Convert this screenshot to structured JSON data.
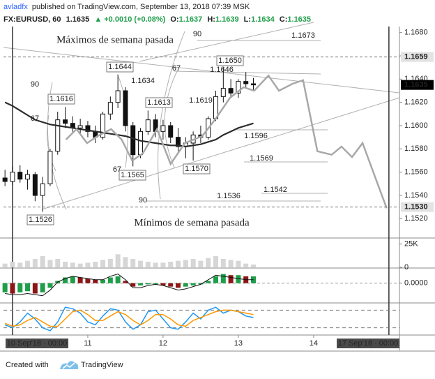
{
  "header": {
    "author": "avladfx",
    "published": "published on TradingView.com, September 13, 2018 07:39 MSK",
    "symbol": "FX:EURUSD, 60",
    "last": "1.1635",
    "change": "▲ +0.0010 (+0.08%)",
    "ohlc": [
      {
        "label": "O:",
        "value": "1.1637"
      },
      {
        "label": "H:",
        "value": "1.1639"
      },
      {
        "label": "L:",
        "value": "1.1634"
      },
      {
        "label": "C:",
        "value": "1.1635"
      }
    ]
  },
  "footer": {
    "created": "Created with",
    "brand": "TradingView"
  },
  "chart_data": [
    {
      "type": "candlestick",
      "x": [
        9.9,
        10,
        10.1,
        10.2,
        10.3,
        10.4,
        10.5,
        10.6,
        10.7,
        10.8,
        10.9,
        11,
        11.1,
        11.2,
        11.3,
        11.4,
        11.5,
        11.6,
        11.7,
        11.8,
        11.9,
        12,
        12.1,
        12.2,
        12.3,
        12.4,
        12.5,
        12.6,
        12.7,
        12.8,
        12.9,
        13,
        13.1,
        13.2
      ],
      "open": [
        1.1555,
        1.1552,
        1.156,
        1.1554,
        1.1558,
        1.154,
        1.155,
        1.1578,
        1.1605,
        1.1602,
        1.1598,
        1.16,
        1.1595,
        1.159,
        1.161,
        1.162,
        1.163,
        1.16,
        1.1575,
        1.1595,
        1.1605,
        1.1595,
        1.16,
        1.159,
        1.1582,
        1.1585,
        1.1592,
        1.159,
        1.1606,
        1.1625,
        1.1632,
        1.1628,
        1.1638,
        1.1636
      ],
      "high": [
        1.1562,
        1.1565,
        1.1566,
        1.1562,
        1.156,
        1.1556,
        1.158,
        1.1612,
        1.1616,
        1.1608,
        1.1606,
        1.1604,
        1.16,
        1.1612,
        1.1625,
        1.1644,
        1.1633,
        1.1603,
        1.1598,
        1.1613,
        1.161,
        1.1605,
        1.1603,
        1.1598,
        1.159,
        1.1595,
        1.16,
        1.1608,
        1.163,
        1.165,
        1.164,
        1.164,
        1.1646,
        1.1641
      ],
      "low": [
        1.1548,
        1.1549,
        1.1551,
        1.1545,
        1.1535,
        1.1526,
        1.1548,
        1.1575,
        1.1598,
        1.1594,
        1.1592,
        1.159,
        1.1585,
        1.1588,
        1.1605,
        1.1615,
        1.1595,
        1.1565,
        1.1572,
        1.1592,
        1.159,
        1.1588,
        1.1585,
        1.1578,
        1.1572,
        1.157,
        1.1585,
        1.1588,
        1.1604,
        1.162,
        1.1625,
        1.1624,
        1.1632,
        1.163
      ],
      "close": [
        1.1552,
        1.156,
        1.1554,
        1.1558,
        1.154,
        1.155,
        1.1578,
        1.1605,
        1.1602,
        1.1598,
        1.16,
        1.1595,
        1.159,
        1.161,
        1.162,
        1.163,
        1.16,
        1.1575,
        1.1595,
        1.1605,
        1.1595,
        1.16,
        1.159,
        1.1582,
        1.1585,
        1.1592,
        1.159,
        1.1606,
        1.1625,
        1.1632,
        1.1628,
        1.1638,
        1.1636,
        1.1635
      ],
      "lines": [
        {
          "color": "#2b2b2b",
          "values": [
            1.162,
            1.1617,
            1.1613,
            1.1609,
            1.1605,
            1.1603,
            1.1601,
            1.16,
            1.1599,
            1.1598,
            1.1597,
            1.1596,
            1.1595,
            1.1594,
            1.1593,
            1.1592,
            1.1591,
            1.1589,
            1.1587,
            1.1586,
            1.1585,
            1.1584,
            1.1583,
            1.1583,
            1.1582,
            1.1583,
            1.1584,
            1.1586,
            1.1588,
            1.1592,
            1.1595,
            1.1598,
            1.16,
            1.1602
          ]
        },
        {
          "color": "#a8a8a8",
          "x": [
            10.71,
            10.85,
            10.99,
            11.13,
            11.31,
            11.45,
            11.59,
            11.73,
            11.92,
            12.1,
            12.29,
            12.52,
            12.7,
            12.89,
            13.07,
            13.21,
            13.4,
            13.54,
            13.72,
            13.86,
            14.05,
            14.24,
            14.37,
            14.51,
            14.65,
            14.97
          ],
          "values": [
            1.1588,
            1.1597,
            1.1585,
            1.1591,
            1.1597,
            1.1588,
            1.157,
            1.1576,
            1.1597,
            1.1567,
            1.1585,
            1.1591,
            1.1606,
            1.1624,
            1.1633,
            1.163,
            1.1643,
            1.163,
            1.1636,
            1.1639,
            1.1578,
            1.1575,
            1.1582,
            1.1573,
            1.1585,
            1.1529
          ]
        }
      ],
      "annotations": [
        "Máximos de semana pasada",
        "Mínimos de semana pasada",
        "1.1644",
        "1.1616",
        "1.1613",
        "1.1565",
        "1.1570",
        "1.1526",
        "1.1650",
        "1.1634",
        "1.1646",
        "1.1619",
        "1.1596",
        "1.1569",
        "1.1542",
        "1.1536",
        "1.1673",
        "90",
        "67",
        "90",
        "67",
        "67",
        "90"
      ],
      "price_labels": [
        {
          "value": 1.1659,
          "label": "1.1659",
          "color": "#e3e3e3",
          "dashed": true
        },
        {
          "value": 1.1635,
          "label": "1.1635",
          "color": "#000000"
        },
        {
          "value": 1.153,
          "label": "1.1530",
          "color": "#e3e3e3",
          "dashed": true
        }
      ],
      "xlim": [
        9.88,
        15.14
      ],
      "xticks": [
        {
          "value": 10,
          "label": "10 Sep'18 · 00:00"
        },
        11,
        12,
        13,
        14,
        {
          "value": 15,
          "label": "17 Sep'18 · 00:00"
        }
      ],
      "ylim": [
        1.1504,
        1.169
      ],
      "yticks": [
        {
          "value": 1.168,
          "label": "1.1680"
        },
        {
          "value": 1.166,
          "label": "1.1660"
        },
        {
          "value": 1.164,
          "label": "1.1640"
        },
        {
          "value": 1.162,
          "label": "1.1620"
        },
        {
          "value": 1.16,
          "label": "1.1600"
        },
        {
          "value": 1.158,
          "label": "1.1580"
        },
        {
          "value": 1.156,
          "label": "1.1560"
        },
        {
          "value": 1.154,
          "label": "1.1540"
        },
        {
          "value": 1.152,
          "label": "1.1520"
        }
      ]
    },
    {
      "type": "bar",
      "color": "#d6d6d6",
      "x": [
        9.9,
        10,
        10.1,
        10.2,
        10.3,
        10.4,
        10.5,
        10.6,
        10.7,
        10.8,
        10.9,
        11,
        11.1,
        11.2,
        11.3,
        11.4,
        11.5,
        11.6,
        11.7,
        11.8,
        11.9,
        12,
        12.1,
        12.2,
        12.3,
        12.4,
        12.5,
        12.6,
        12.7,
        12.8,
        12.9,
        13,
        13.1,
        13.2
      ],
      "values": [
        4000,
        6000,
        5000,
        7000,
        9000,
        12000,
        8000,
        9000,
        6000,
        5000,
        4000,
        5000,
        6000,
        8000,
        9000,
        14000,
        11000,
        9000,
        7000,
        6000,
        5000,
        5000,
        6000,
        7000,
        8000,
        9000,
        7000,
        10000,
        12000,
        9000,
        8000,
        7000,
        4000,
        3000
      ],
      "ylim": [
        0,
        30000
      ],
      "yticks": [
        0,
        {
          "value": 25000,
          "label": "25K"
        }
      ]
    },
    {
      "type": "bar",
      "colors": [
        "#1f9e4a",
        "#8b1616"
      ],
      "x": [
        9.9,
        10,
        10.1,
        10.2,
        10.3,
        10.4,
        10.5,
        10.6,
        10.7,
        10.8,
        10.9,
        11,
        11.1,
        11.2,
        11.3,
        11.4,
        11.5,
        11.6,
        11.7,
        11.8,
        11.9,
        12,
        12.1,
        12.2,
        12.3,
        12.4,
        12.5,
        12.6,
        12.7,
        12.8,
        12.9,
        13,
        13.1,
        13.2
      ],
      "values": [
        -0.0008,
        -0.0009,
        -0.0008,
        -0.0007,
        -0.0009,
        -0.0008,
        -0.0004,
        0.0002,
        0.0005,
        0.0006,
        0.0005,
        0.0004,
        0.0003,
        0.0003,
        0.0005,
        0.0006,
        0.0002,
        -0.0003,
        -0.0002,
        -0.0001,
        -0.0001,
        -0.0002,
        -0.0003,
        -0.0004,
        -0.0003,
        -0.0002,
        -0.0001,
        0.0002,
        0.0006,
        0.0008,
        0.0007,
        0.0007,
        0.0006,
        0.0006
      ],
      "lines": [
        {
          "color": "#111111",
          "values": [
            -0.0009,
            -0.001,
            -0.001,
            -0.0009,
            -0.001,
            -0.0011,
            -0.0006,
            0.0001,
            0.0004,
            0.0006,
            0.0005,
            0.0004,
            0.0003,
            0.0003,
            0.0006,
            0.0008,
            0.0003,
            -0.0004,
            -0.0004,
            -0.0002,
            -0.0001,
            -0.0002,
            -0.0004,
            -0.0006,
            -0.0005,
            -0.0003,
            -0.0001,
            0.0003,
            0.0007,
            0.0006,
            0.0005,
            0.0004,
            0.0003,
            0.0003
          ]
        }
      ],
      "ylim": [
        -0.0016,
        0.0012
      ],
      "yticks": [
        {
          "value": 0,
          "label": "0.0000"
        }
      ]
    },
    {
      "type": "line",
      "x": [
        9.9,
        10,
        10.1,
        10.2,
        10.3,
        10.4,
        10.5,
        10.6,
        10.7,
        10.8,
        10.9,
        11,
        11.1,
        11.2,
        11.3,
        11.4,
        11.5,
        11.6,
        11.7,
        11.8,
        11.9,
        12,
        12.1,
        12.2,
        12.3,
        12.4,
        12.5,
        12.6,
        12.7,
        12.8,
        12.9,
        13,
        13.1,
        13.2
      ],
      "series": [
        {
          "color": "#2196f3",
          "values": [
            30,
            20,
            40,
            70,
            50,
            20,
            10,
            40,
            90,
            85,
            70,
            40,
            30,
            60,
            85,
            80,
            40,
            15,
            30,
            75,
            80,
            50,
            20,
            15,
            40,
            70,
            50,
            80,
            90,
            70,
            80,
            75,
            60,
            55
          ]
        },
        {
          "color": "#ff9800",
          "values": [
            35,
            25,
            30,
            45,
            55,
            40,
            25,
            25,
            50,
            75,
            80,
            65,
            45,
            45,
            60,
            75,
            65,
            45,
            30,
            45,
            65,
            65,
            50,
            30,
            25,
            45,
            55,
            65,
            75,
            80,
            80,
            75,
            70,
            65
          ]
        }
      ],
      "levels": [
        80,
        20
      ],
      "ylim": [
        0,
        100
      ]
    }
  ]
}
